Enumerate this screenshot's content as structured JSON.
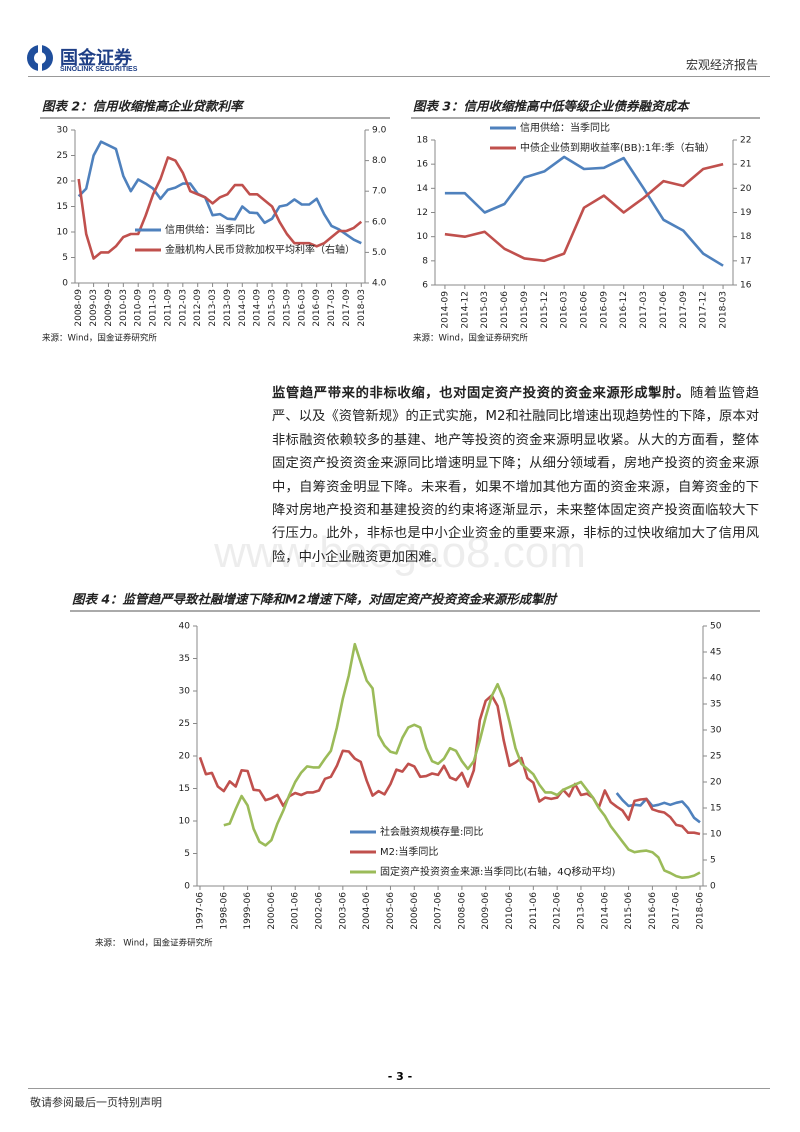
{
  "header": {
    "logo_cn": "国金证券",
    "logo_en": "SINOLINK SECURITIES",
    "report_type": "宏观经济报告"
  },
  "body": {
    "lead": "监管趋严带来的非标收缩，也对固定资产投资的资金来源形成掣肘。",
    "text": "随着监管趋严、以及《资管新规》的正式实施，M2和社融同比增速出现趋势性的下降，原本对非标融资依赖较多的基建、地产等投资的资金来源明显收紧。从大的方面看，整体固定资产投资资金来源同比增速明显下降；从细分领域看，房地产投资的资金来源中，自筹资金明显下降。未来看，如果不增加其他方面的资金来源，自筹资金的下降对房地产投资和基建投资的约束将逐渐显示，未来整体固定资产投资面临较大下行压力。此外，非标也是中小企业资金的重要来源，非标的过快收缩加大了信用风险，中小企业融资更加困难。"
  },
  "watermark": "www.baogao8.com",
  "footer": {
    "page": "- 3 -",
    "disclaimer": "敬请参阅最后一页特别声明"
  },
  "chart_data": [
    {
      "type": "line",
      "title": "图表 2：信用收缩推高企业贷款利率",
      "source": "来源：Wind，国金证券研究所",
      "legend": "lower center",
      "categories": [
        "2008-09",
        null,
        "2009-03",
        null,
        "2009-09",
        null,
        "2010-03",
        null,
        "2010-09",
        null,
        "2011-03",
        null,
        "2011-09",
        null,
        "2012-03",
        null,
        "2012-09",
        null,
        "2013-03",
        null,
        "2013-09",
        null,
        "2014-03",
        null,
        "2014-09",
        null,
        "2015-03",
        null,
        "2015-09",
        null,
        "2016-03",
        null,
        "2016-09",
        null,
        "2017-03",
        null,
        "2017-09",
        null,
        "2018-03"
      ],
      "ylim": [
        0,
        30
      ],
      "yticks": [
        0,
        5,
        10,
        15,
        20,
        25,
        30
      ],
      "y2lim": [
        4,
        9
      ],
      "y2ticks": [
        {
          "value": 4,
          "label": "4.0"
        },
        {
          "value": 5,
          "label": "5.0"
        },
        {
          "value": 6,
          "label": "6.0"
        },
        {
          "value": 7,
          "label": "7.0"
        },
        {
          "value": 8,
          "label": "8.0"
        },
        {
          "value": 9,
          "label": "9.0"
        }
      ],
      "series": [
        {
          "name": "信用供给：当季同比",
          "color": "#4f81bd",
          "values": [
            17,
            18.5,
            25,
            27.7,
            27,
            26.3,
            21,
            18,
            20.3,
            19.5,
            18.5,
            16.5,
            18.3,
            18.7,
            19.5,
            19.5,
            17.5,
            16.8,
            13.3,
            13.5,
            12.6,
            12.5,
            15,
            13.8,
            13.7,
            11.8,
            12.6,
            15,
            15.3,
            16.4,
            15.4,
            15.4,
            16.5,
            13.5,
            11.2,
            10.5,
            9.5,
            8.5,
            7.8
          ]
        },
        {
          "name": "金融机构人民币贷款加权平均利率（右轴）",
          "color": "#c0504d",
          "axis": "y2",
          "values": [
            7.4,
            5.6,
            4.8,
            5.0,
            5.0,
            5.2,
            5.5,
            5.6,
            5.6,
            6.2,
            6.9,
            7.4,
            8.1,
            8.0,
            7.6,
            7.0,
            6.9,
            6.8,
            6.6,
            6.8,
            6.9,
            7.2,
            7.2,
            6.9,
            6.9,
            6.7,
            6.5,
            6.0,
            5.6,
            5.3,
            5.3,
            5.3,
            5.2,
            5.3,
            5.5,
            5.7,
            5.7,
            5.8,
            6.0
          ]
        }
      ]
    },
    {
      "type": "line",
      "title": "图表 3：信用收缩推高中低等级企业债券融资成本",
      "source": "来源：Wind，国金证券研究所",
      "legend": "upper left",
      "categories": [
        "2014-09",
        "2014-12",
        "2015-03",
        "2015-06",
        "2015-09",
        "2015-12",
        "2016-03",
        "2016-06",
        "2016-09",
        "2016-12",
        "2017-03",
        "2017-06",
        "2017-09",
        "2017-12",
        "2018-03"
      ],
      "ylim": [
        6,
        18
      ],
      "yticks": [
        6,
        8,
        10,
        12,
        14,
        16,
        18
      ],
      "y2lim": [
        16,
        22
      ],
      "y2ticks": [
        16,
        17,
        18,
        19,
        20,
        21,
        22
      ],
      "series": [
        {
          "name": "信用供给：当季同比",
          "color": "#4f81bd",
          "values": [
            13.6,
            13.6,
            12.0,
            12.7,
            14.9,
            15.4,
            16.6,
            15.6,
            15.7,
            16.5,
            14.0,
            11.4,
            10.5,
            8.6,
            7.6
          ]
        },
        {
          "name": "中债企业债到期收益率(BB):1年:季（右轴）",
          "color": "#c0504d",
          "axis": "y2",
          "values": [
            18.1,
            18.0,
            18.2,
            17.5,
            17.1,
            17.0,
            17.3,
            19.2,
            19.7,
            19.0,
            19.6,
            20.3,
            20.1,
            20.8,
            21.0
          ]
        }
      ]
    },
    {
      "type": "line",
      "title": "图表 4：监管趋严导致社融增速下降和M2增速下降，对固定资产投资资金来源形成掣肘",
      "source": "来源： Wind，国金证券研究所",
      "legend": "lower right",
      "categories": [
        "1997-06",
        null,
        null,
        null,
        "1998-06",
        null,
        null,
        null,
        "1999-06",
        null,
        null,
        null,
        "2000-06",
        null,
        null,
        null,
        "2001-06",
        null,
        null,
        null,
        "2002-06",
        null,
        null,
        null,
        "2003-06",
        null,
        null,
        null,
        "2004-06",
        null,
        null,
        null,
        "2005-06",
        null,
        null,
        null,
        "2006-06",
        null,
        null,
        null,
        "2007-06",
        null,
        null,
        null,
        "2008-06",
        null,
        null,
        null,
        "2009-06",
        null,
        null,
        null,
        "2010-06",
        null,
        null,
        null,
        "2011-06",
        null,
        null,
        null,
        "2012-06",
        null,
        null,
        null,
        "2013-06",
        null,
        null,
        null,
        "2014-06",
        null,
        null,
        null,
        "2015-06",
        null,
        null,
        null,
        "2016-06",
        null,
        null,
        null,
        "2017-06",
        null,
        null,
        null,
        "2018-06"
      ],
      "ylim": [
        0,
        40
      ],
      "yticks": [
        0,
        5,
        10,
        15,
        20,
        25,
        30,
        35,
        40
      ],
      "y2lim": [
        0,
        50
      ],
      "y2ticks": [
        0,
        5,
        10,
        15,
        20,
        25,
        30,
        35,
        40,
        45,
        50
      ],
      "series": [
        {
          "name": "社会融资规模存量:同比",
          "color": "#4f81bd",
          "values": [
            null,
            null,
            null,
            null,
            null,
            null,
            null,
            null,
            null,
            null,
            null,
            null,
            null,
            null,
            null,
            null,
            null,
            null,
            null,
            null,
            null,
            null,
            null,
            null,
            null,
            null,
            null,
            null,
            null,
            null,
            null,
            null,
            null,
            null,
            null,
            null,
            null,
            null,
            null,
            null,
            null,
            null,
            null,
            null,
            null,
            null,
            null,
            null,
            null,
            null,
            null,
            null,
            null,
            null,
            null,
            null,
            null,
            null,
            null,
            null,
            null,
            null,
            null,
            null,
            null,
            null,
            null,
            null,
            null,
            null,
            14.3,
            13.2,
            12.3,
            12.5,
            12.4,
            13.4,
            12.3,
            12.5,
            12.8,
            12.5,
            12.8,
            13.0,
            12.0,
            10.5,
            9.8
          ]
        },
        {
          "name": "M2:当季同比",
          "color": "#c0504d",
          "values": [
            19.8,
            17.2,
            17.4,
            15.3,
            14.6,
            16.1,
            15.3,
            17.8,
            17.7,
            14.8,
            14.7,
            13.2,
            13.5,
            14.0,
            12.3,
            13.8,
            14.3,
            14.0,
            14.4,
            14.4,
            14.7,
            16.5,
            16.8,
            18.5,
            20.8,
            20.7,
            19.6,
            19.1,
            16.2,
            13.9,
            14.6,
            14.1,
            15.7,
            17.9,
            17.6,
            18.8,
            18.4,
            16.8,
            16.9,
            17.3,
            17.1,
            18.5,
            16.7,
            16.3,
            17.4,
            15.3,
            17.8,
            25.5,
            28.5,
            29.3,
            27.7,
            22.5,
            18.5,
            19.0,
            19.7,
            16.6,
            15.9,
            13.0,
            13.6,
            13.4,
            13.6,
            14.8,
            13.8,
            15.7,
            14.0,
            14.2,
            13.6,
            12.1,
            14.7,
            12.9,
            12.2,
            11.6,
            10.2,
            13.1,
            13.3,
            13.4,
            11.8,
            11.5,
            11.3,
            10.6,
            9.4,
            9.2,
            8.2,
            8.2,
            8.0
          ]
        },
        {
          "name": "固定资产投资资金来源:当季同比(右轴，4Q移动平均)",
          "color": "#9bbb59",
          "axis": "y2",
          "values": [
            null,
            null,
            null,
            null,
            11.7,
            12.0,
            14.8,
            17.3,
            15.5,
            11.0,
            8.5,
            7.8,
            8.8,
            12.0,
            14.5,
            17.5,
            20.0,
            21.8,
            23.0,
            22.8,
            22.8,
            24.5,
            26.0,
            30.5,
            36.0,
            40.5,
            46.5,
            43.0,
            39.5,
            38.0,
            29.0,
            27.0,
            25.8,
            25.5,
            28.5,
            30.5,
            31.0,
            30.5,
            26.5,
            24.0,
            23.5,
            24.5,
            26.5,
            26.0,
            24.0,
            22.5,
            24.0,
            28.0,
            32.5,
            36.5,
            38.8,
            36.0,
            31.5,
            26.5,
            23.5,
            22.5,
            21.5,
            19.5,
            18.0,
            18.0,
            17.5,
            18.5,
            19.0,
            19.5,
            20.0,
            18.5,
            17.0,
            15.0,
            13.5,
            11.5,
            10.0,
            8.5,
            7.0,
            6.5,
            6.7,
            6.8,
            6.5,
            5.5,
            3.0,
            2.5,
            1.9,
            1.6,
            1.7,
            2.0,
            2.6
          ]
        }
      ]
    }
  ]
}
